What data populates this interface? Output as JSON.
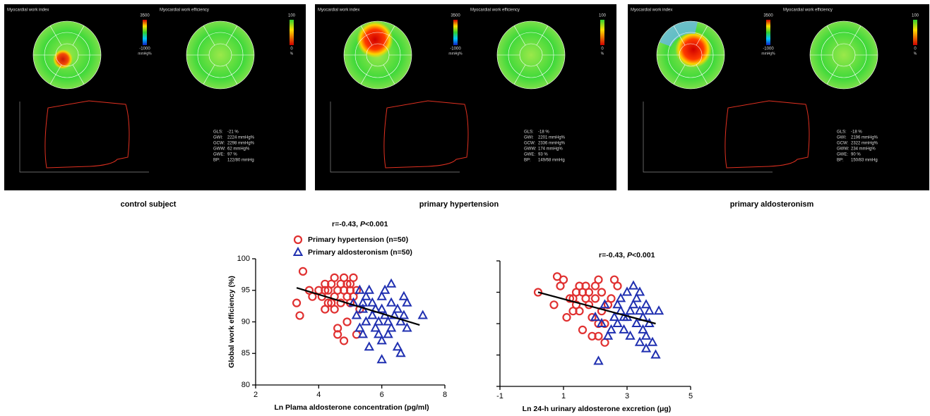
{
  "panels": [
    {
      "index_title": "Myocardial work index",
      "efficiency_title": "Myocardial work efficiency",
      "index_scale": [
        "3500",
        "-1000",
        "mmHg%"
      ],
      "efficiency_scale": [
        "100",
        "0",
        "%"
      ],
      "stats": [
        [
          "GLS:",
          "-21 %"
        ],
        [
          "GWI:",
          "2224 mmHg%"
        ],
        [
          "GCW:",
          "2298 mmHg%"
        ],
        [
          "GWW:",
          "62 mmHg%"
        ],
        [
          "GWE:",
          "97 %"
        ],
        [
          "BP:",
          "122/80 mmHg"
        ]
      ],
      "caption": "control subject"
    },
    {
      "index_title": "Myocardial work index",
      "efficiency_title": "Myocardial work efficiency",
      "index_scale": [
        "3500",
        "-1000",
        "mmHg%"
      ],
      "efficiency_scale": [
        "100",
        "0",
        "%"
      ],
      "stats": [
        [
          "GLS:",
          "-18 %"
        ],
        [
          "GWI:",
          "2201 mmHg%"
        ],
        [
          "GCW:",
          "2336 mmHg%"
        ],
        [
          "GWW:",
          "174 mmHg%"
        ],
        [
          "GWE:",
          "93 %"
        ],
        [
          "BP:",
          "149/68 mmHg"
        ]
      ],
      "caption": "primary hypertension"
    },
    {
      "index_title": "Myocardial work index",
      "efficiency_title": "Myocardial work efficiency",
      "index_scale": [
        "3500",
        "-1000",
        "mmHg%"
      ],
      "efficiency_scale": [
        "100",
        "0",
        "%"
      ],
      "stats": [
        [
          "GLS:",
          "-18 %"
        ],
        [
          "GWI:",
          "2196 mmHg%"
        ],
        [
          "GCW:",
          "2322 mmHg%"
        ],
        [
          "GWW:",
          "234 mmHg%"
        ],
        [
          "GWE:",
          "90 %"
        ],
        [
          "BP:",
          "150/83 mmHg"
        ]
      ],
      "caption": "primary aldosteronism"
    }
  ],
  "chart_data": [
    {
      "type": "scatter",
      "annotation": [
        "r=-0.43, ",
        "P",
        "<0.001"
      ],
      "x_label": "Ln Plama aldosterone concentration (pg/ml)",
      "y_label": "Global work efficiency (%)",
      "xlim": [
        2,
        8
      ],
      "xticks": [
        2,
        4,
        6,
        8
      ],
      "ylim": [
        80,
        100
      ],
      "yticks": [
        80,
        85,
        90,
        95,
        100
      ],
      "trendline": {
        "x": [
          3.3,
          7.2
        ],
        "y": [
          95.4,
          89.5
        ]
      },
      "series": [
        {
          "name": "Primary hypertension (n=50)",
          "color": "#e03030",
          "marker": "circle",
          "x": [
            3.3,
            3.4,
            3.5,
            3.7,
            3.8,
            4.0,
            4.1,
            4.2,
            4.2,
            4.3,
            4.4,
            4.5,
            4.5,
            4.5,
            4.6,
            4.6,
            4.7,
            4.7,
            4.8,
            4.8,
            4.8,
            4.9,
            4.9,
            4.9,
            5.0,
            5.0,
            5.1,
            5.1,
            5.2,
            5.3,
            4.3,
            4.6,
            5.0,
            4.4,
            4.2,
            5.2
          ],
          "values": [
            93,
            91,
            98,
            95,
            94,
            95,
            94,
            92,
            95,
            93,
            96,
            97,
            94,
            92,
            89,
            88,
            96,
            93,
            97,
            95,
            87,
            96,
            94,
            90,
            95,
            93,
            94,
            97,
            88,
            92,
            95,
            95,
            96,
            93,
            96,
            95
          ]
        },
        {
          "name": "Primary aldosteronism (n=50)",
          "color": "#1f2fb0",
          "marker": "triangle",
          "x": [
            5.1,
            5.2,
            5.3,
            5.3,
            5.4,
            5.4,
            5.5,
            5.5,
            5.6,
            5.6,
            5.7,
            5.7,
            5.8,
            5.9,
            5.9,
            6.0,
            6.0,
            6.0,
            6.0,
            6.1,
            6.1,
            6.2,
            6.3,
            6.3,
            6.3,
            6.4,
            6.5,
            6.5,
            6.6,
            6.6,
            6.7,
            6.7,
            6.8,
            6.8,
            7.3,
            5.8,
            6.2,
            5.4
          ],
          "values": [
            93,
            91,
            95,
            89,
            92,
            88,
            94,
            90,
            95,
            86,
            93,
            91,
            89,
            90,
            88,
            94,
            92,
            84,
            87,
            95,
            91,
            90,
            96,
            89,
            93,
            91,
            86,
            92,
            85,
            90,
            94,
            91,
            93,
            89,
            91,
            92,
            88,
            93
          ]
        }
      ]
    },
    {
      "type": "scatter",
      "annotation": [
        "r=-0.43, ",
        "P",
        "<0.001"
      ],
      "x_label": "Ln 24-h urinary aldosterone excretion (μg)",
      "xlim": [
        -1,
        5
      ],
      "xticks": [
        -1,
        1,
        3,
        5
      ],
      "ylim": [
        80,
        100
      ],
      "ytick_marks": [
        80,
        85,
        90,
        95,
        100
      ],
      "trendline": {
        "x": [
          0.2,
          3.9
        ],
        "y": [
          95,
          90
        ]
      },
      "series": [
        {
          "color": "#e03030",
          "marker": "circle",
          "x": [
            0.2,
            0.7,
            0.8,
            0.9,
            1.0,
            1.1,
            1.2,
            1.3,
            1.4,
            1.4,
            1.5,
            1.5,
            1.6,
            1.6,
            1.7,
            1.8,
            1.8,
            1.9,
            1.9,
            2.0,
            2.0,
            2.1,
            2.1,
            2.1,
            2.2,
            2.2,
            2.3,
            2.4,
            2.5,
            2.6,
            2.7,
            1.3,
            2.3,
            1.7
          ],
          "values": [
            95,
            93,
            97.5,
            96,
            97,
            91,
            94,
            94,
            95,
            93,
            96,
            92,
            95,
            89,
            94,
            93,
            95,
            88,
            91,
            94,
            96,
            97,
            90,
            88,
            95,
            92,
            87,
            93,
            94,
            97,
            96,
            92,
            90,
            96
          ]
        },
        {
          "color": "#1f2fb0",
          "marker": "triangle",
          "x": [
            2.0,
            2.1,
            2.2,
            2.3,
            2.4,
            2.5,
            2.6,
            2.7,
            2.7,
            2.8,
            2.8,
            2.9,
            3.0,
            3.0,
            3.1,
            3.1,
            3.2,
            3.2,
            3.3,
            3.3,
            3.4,
            3.4,
            3.5,
            3.5,
            3.6,
            3.6,
            3.7,
            3.7,
            3.8,
            3.9,
            4.0,
            2.9,
            3.4,
            3.6
          ],
          "values": [
            91,
            84,
            90,
            93,
            88,
            89,
            91,
            93,
            90,
            94,
            92,
            89,
            91,
            95,
            92,
            88,
            96,
            93,
            90,
            94,
            92,
            87,
            91,
            89,
            93,
            86,
            90,
            92,
            87,
            85,
            92,
            91,
            95,
            88
          ]
        }
      ]
    }
  ]
}
